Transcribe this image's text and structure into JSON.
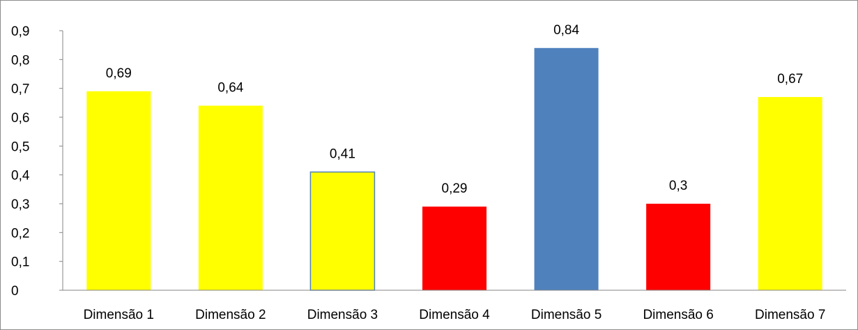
{
  "chart_data": {
    "type": "bar",
    "title": "",
    "xlabel": "",
    "ylabel": "",
    "categories": [
      "Dimensão 1",
      "Dimensão 2",
      "Dimensão 3",
      "Dimensão 4",
      "Dimensão 5",
      "Dimensão 6",
      "Dimensão 7"
    ],
    "values": [
      0.69,
      0.64,
      0.41,
      0.29,
      0.84,
      0.3,
      0.67
    ],
    "data_labels": [
      "0,69",
      "0,64",
      "0,41",
      "0,29",
      "0,84",
      "0,3",
      "0,67"
    ],
    "bar_colors": [
      "#ffff00",
      "#ffff00",
      "#ffff00",
      "#ff0000",
      "#4f81bd",
      "#ff0000",
      "#ffff00"
    ],
    "bar_outline": [
      null,
      null,
      "#4f81bd",
      null,
      null,
      null,
      null
    ],
    "ylim": [
      0,
      0.9
    ],
    "yticks": [
      0,
      0.1,
      0.2,
      0.3,
      0.4,
      0.5,
      0.6,
      0.7,
      0.8,
      0.9
    ],
    "ytick_labels": [
      "0",
      "0,1",
      "0,2",
      "0,3",
      "0,4",
      "0,5",
      "0,6",
      "0,7",
      "0,8",
      "0,9"
    ],
    "grid": false,
    "legend": "none"
  }
}
